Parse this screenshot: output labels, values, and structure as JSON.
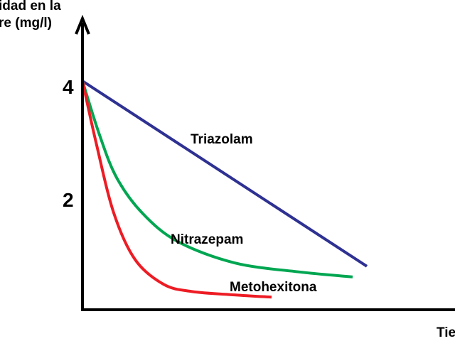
{
  "chart_data": {
    "type": "line",
    "ylabel_lines": [
      "idad en la",
      "re (mg/l)"
    ],
    "xlabel": "Tie",
    "yticks": [
      {
        "value": 4,
        "label": "4"
      },
      {
        "value": 2,
        "label": "2"
      }
    ],
    "xlim": [
      0,
      13
    ],
    "ylim": [
      0,
      5
    ],
    "grid": false,
    "legend": "inline labels",
    "series": [
      {
        "name": "Triazolam",
        "color": "#2e3192",
        "x": [
          0,
          10
        ],
        "y": [
          4.1,
          0.8
        ]
      },
      {
        "name": "Nitrazepam",
        "color": "#00a651",
        "x": [
          0,
          0.6,
          1.2,
          2.1,
          3.35,
          5.35,
          7.6,
          9.5
        ],
        "y": [
          4.1,
          3.14,
          2.38,
          1.75,
          1.24,
          0.86,
          0.7,
          0.61
        ]
      },
      {
        "name": "Metohexitona",
        "color": "#ed1c24",
        "x": [
          0,
          0.48,
          1.1,
          1.85,
          2.85,
          3.85,
          5.35,
          6.65
        ],
        "y": [
          4.1,
          3.0,
          1.75,
          0.92,
          0.48,
          0.35,
          0.29,
          0.25
        ]
      }
    ]
  }
}
